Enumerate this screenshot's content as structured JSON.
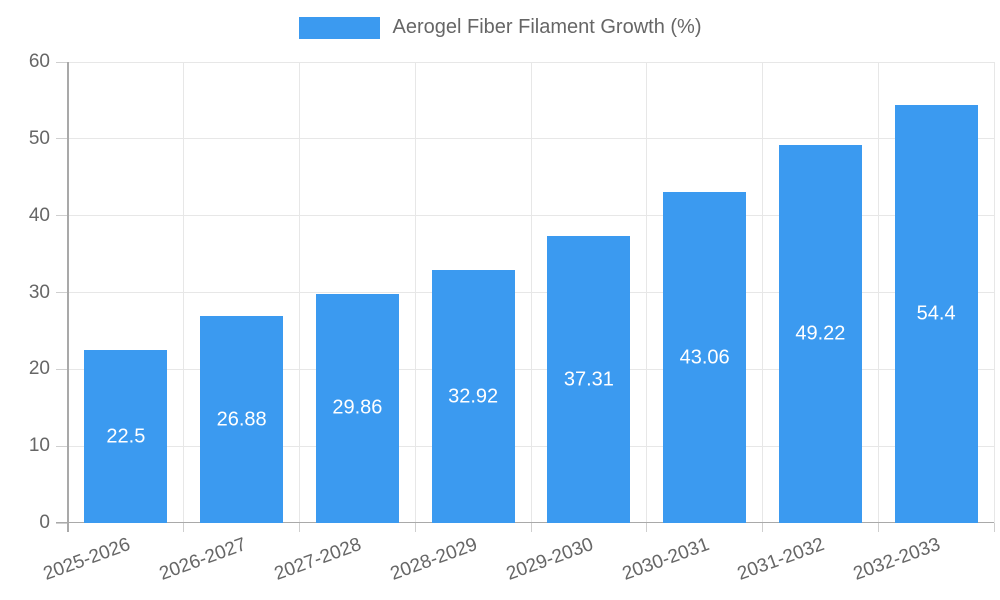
{
  "chart_data": {
    "type": "bar",
    "title": "Aerogel Fiber Filament Growth (%)",
    "categories": [
      "2025-2026",
      "2026-2027",
      "2027-2028",
      "2028-2029",
      "2029-2030",
      "2030-2031",
      "2031-2032",
      "2032-2033"
    ],
    "values": [
      22.5,
      26.88,
      29.86,
      32.92,
      37.31,
      43.06,
      49.22,
      54.4
    ],
    "series": [
      {
        "name": "Aerogel Fiber Filament Growth (%)",
        "values": [
          22.5,
          26.88,
          29.86,
          32.92,
          37.31,
          43.06,
          49.22,
          54.4
        ]
      }
    ],
    "xlabel": "",
    "ylabel": "",
    "ylim": [
      0,
      60
    ],
    "yticks": [
      0,
      10,
      20,
      30,
      40,
      50,
      60
    ],
    "grid": true,
    "legend_position": "top",
    "value_labels_inside_bars": true,
    "x_label_rotation_deg": -20,
    "colors": {
      "bar": "#3B9AF0",
      "grid_line": "#E7E7E7",
      "axis_line": "#A9A9A9",
      "tick_mark": "#CFCFCF",
      "axis_text": "#666666",
      "value_text": "#FFFFFF",
      "background": "#FFFFFF"
    }
  }
}
